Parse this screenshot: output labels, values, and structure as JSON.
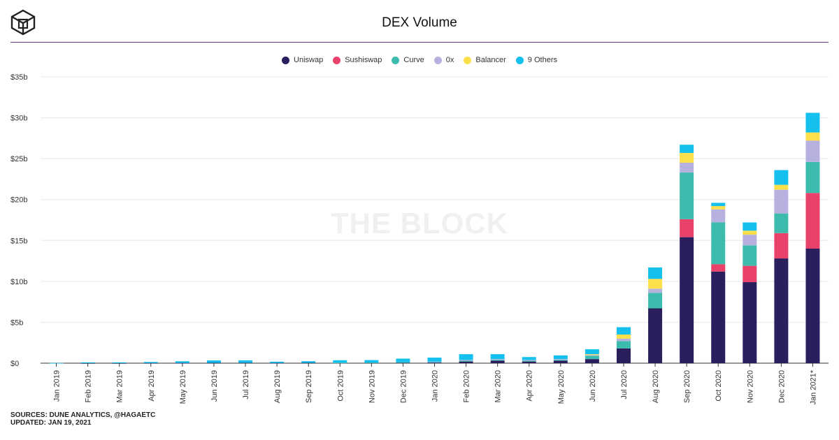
{
  "header": {
    "title": "DEX Volume",
    "logo_icon": "the-block-cube-logo-icon"
  },
  "watermark": "THE BLOCK",
  "footer": {
    "sources": "SOURCES: DUNE ANALYTICS, @HAGAETC",
    "updated": "UPDATED: JAN 19, 2021"
  },
  "colors": {
    "Uniswap": "#2a1f5c",
    "Sushiswap": "#e8426a",
    "Curve": "#3dbcad",
    "0x": "#b7b1e0",
    "Balancer": "#fbe04b",
    "9 Others": "#15c0ee"
  },
  "chart_data": {
    "type": "bar",
    "stacked": true,
    "title": "DEX Volume",
    "xlabel": "",
    "ylabel": "",
    "ylim": [
      0,
      35
    ],
    "yticks": [
      0,
      5,
      10,
      15,
      20,
      25,
      30,
      35
    ],
    "ytick_labels": [
      "$0",
      "$5b",
      "$10b",
      "$15b",
      "$20b",
      "$25b",
      "$30b",
      "$35b"
    ],
    "grid": true,
    "legend_position": "top-center",
    "categories": [
      "Jan 2019",
      "Feb 2019",
      "Mar 2019",
      "Apr 2019",
      "May 2019",
      "Jun 2019",
      "Jul 2019",
      "Aug 2019",
      "Sep 2019",
      "Oct 2019",
      "Nov 2019",
      "Dec 2019",
      "Jan 2020",
      "Feb 2020",
      "Mar 2020",
      "Apr 2020",
      "May 2020",
      "Jun 2020",
      "Jul 2020",
      "Aug 2020",
      "Sep 2020",
      "Oct 2020",
      "Nov 2020",
      "Dec 2020",
      "Jan 2021*"
    ],
    "series": [
      {
        "name": "Uniswap",
        "values": [
          0,
          0.01,
          0.01,
          0.02,
          0.03,
          0.04,
          0.05,
          0.03,
          0.04,
          0.05,
          0.06,
          0.08,
          0.1,
          0.2,
          0.3,
          0.2,
          0.3,
          0.5,
          1.8,
          6.7,
          15.4,
          11.2,
          9.9,
          12.8,
          14.0
        ]
      },
      {
        "name": "Sushiswap",
        "values": [
          0,
          0,
          0,
          0,
          0,
          0,
          0,
          0,
          0,
          0,
          0,
          0,
          0,
          0,
          0,
          0,
          0,
          0,
          0,
          0,
          2.2,
          0.9,
          2.0,
          3.1,
          6.8
        ]
      },
      {
        "name": "Curve",
        "values": [
          0,
          0,
          0,
          0,
          0,
          0,
          0,
          0,
          0,
          0.01,
          0.02,
          0.03,
          0.03,
          0.1,
          0.1,
          0.1,
          0.1,
          0.4,
          0.9,
          1.9,
          5.7,
          5.1,
          2.5,
          2.4,
          3.8
        ]
      },
      {
        "name": "0x",
        "values": [
          0,
          0,
          0,
          0,
          0,
          0,
          0,
          0,
          0,
          0,
          0,
          0,
          0.05,
          0.1,
          0.1,
          0.1,
          0.1,
          0.1,
          0.3,
          0.5,
          1.2,
          1.6,
          1.3,
          2.9,
          2.6
        ]
      },
      {
        "name": "Balancer",
        "values": [
          0,
          0,
          0,
          0,
          0,
          0,
          0,
          0,
          0,
          0,
          0,
          0,
          0,
          0,
          0,
          0,
          0,
          0.1,
          0.5,
          1.2,
          1.2,
          0.4,
          0.5,
          0.6,
          1.0
        ]
      },
      {
        "name": "9 Others",
        "values": [
          0.02,
          0.09,
          0.09,
          0.13,
          0.2,
          0.3,
          0.3,
          0.15,
          0.2,
          0.3,
          0.3,
          0.45,
          0.5,
          0.7,
          0.6,
          0.35,
          0.45,
          0.6,
          0.9,
          1.4,
          1.0,
          0.4,
          1.0,
          1.8,
          2.4
        ]
      }
    ]
  }
}
